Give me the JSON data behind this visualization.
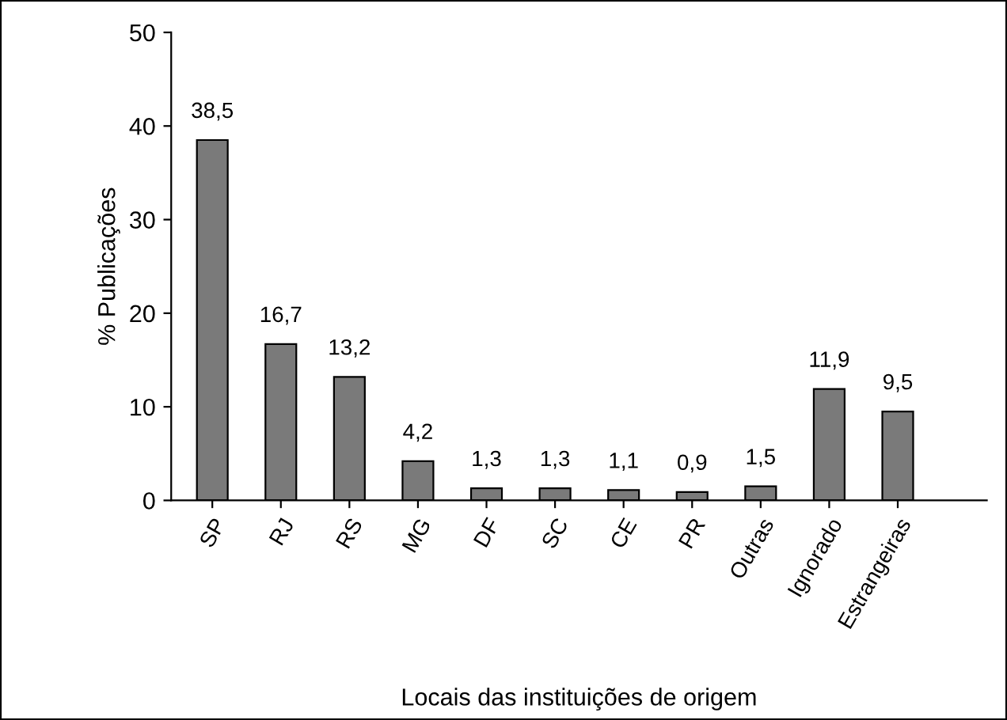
{
  "chart_data": {
    "type": "bar",
    "categories": [
      "SP",
      "RJ",
      "RS",
      "MG",
      "DF",
      "SC",
      "CE",
      "PR",
      "Outras",
      "Ignorado",
      "Estrangeiras"
    ],
    "values": [
      38.5,
      16.7,
      13.2,
      4.2,
      1.3,
      1.3,
      1.1,
      0.9,
      1.5,
      11.9,
      9.5
    ],
    "value_labels": [
      "38,5",
      "16,7",
      "13,2",
      "4,2",
      "1,3",
      "1,3",
      "1,1",
      "0,9",
      "1,5",
      "11,9",
      "9,5"
    ],
    "color": "#7a7a7a",
    "ylabel": "% Publicações",
    "xlabel": "Locais das instituições de origem",
    "ylim": [
      0,
      50
    ],
    "yticks": [
      0,
      10,
      20,
      30,
      40,
      50
    ],
    "grid": false,
    "legend": false
  }
}
